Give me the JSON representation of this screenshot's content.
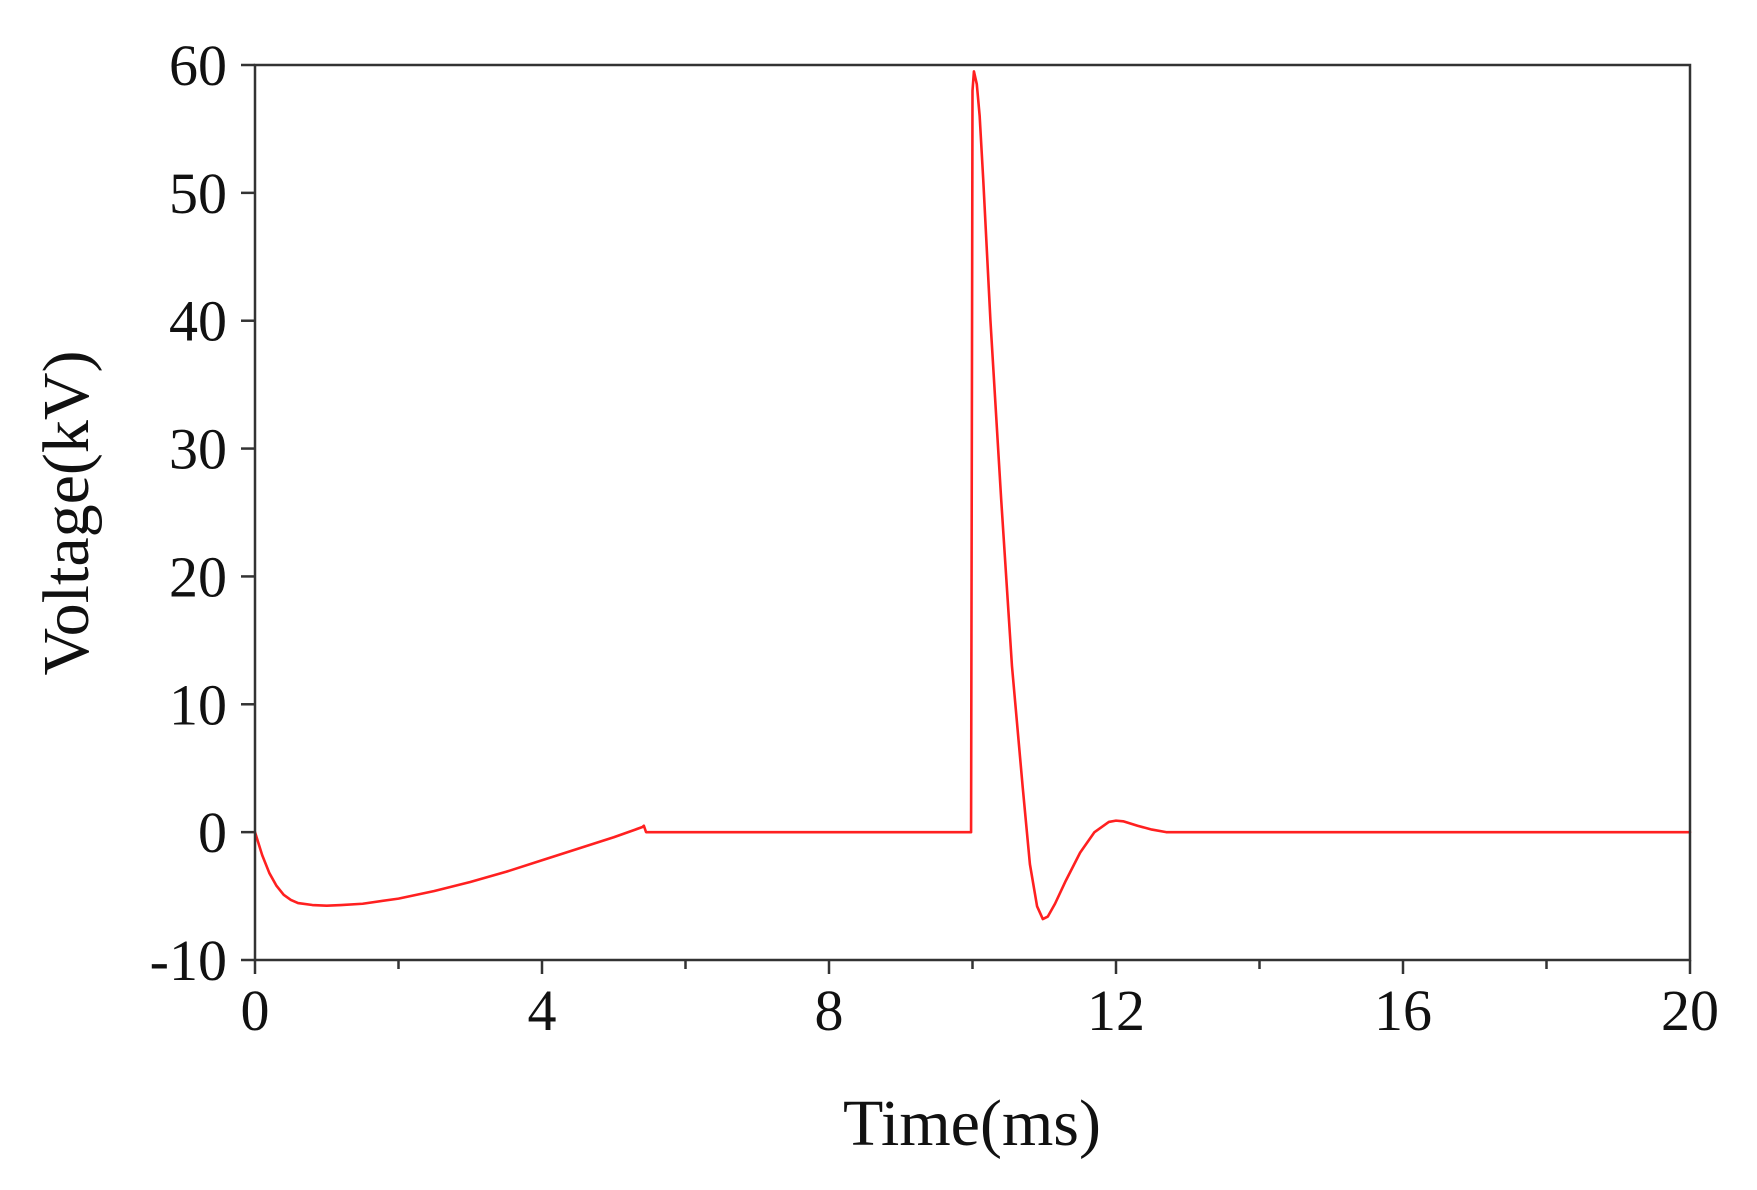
{
  "chart_data": {
    "type": "line",
    "title": "",
    "xlabel": "Time(ms)",
    "ylabel": "Voltage(kV)",
    "xlim": [
      0,
      20
    ],
    "ylim": [
      -10,
      60
    ],
    "x_ticks": [
      0,
      4,
      8,
      12,
      16,
      20
    ],
    "x_minor_ticks": [
      2,
      6,
      10,
      14,
      18
    ],
    "y_ticks": [
      -10,
      0,
      10,
      20,
      30,
      40,
      50,
      60
    ],
    "grid": false,
    "legend": "none",
    "series": [
      {
        "color": "#ff2020",
        "x": [
          0,
          0.1,
          0.2,
          0.3,
          0.4,
          0.5,
          0.6,
          0.8,
          1.0,
          1.2,
          1.5,
          2.0,
          2.5,
          3.0,
          3.5,
          4.0,
          4.5,
          5.0,
          5.3,
          5.4,
          5.42,
          5.45,
          5.5,
          6.0,
          7.0,
          8.0,
          9.0,
          9.98,
          10.0,
          10.02,
          10.06,
          10.1,
          10.15,
          10.25,
          10.4,
          10.55,
          10.7,
          10.8,
          10.9,
          10.98,
          11.05,
          11.15,
          11.3,
          11.5,
          11.7,
          11.9,
          12.0,
          12.1,
          12.3,
          12.5,
          12.7,
          13.0,
          14.0,
          16.0,
          18.0,
          20.0
        ],
        "y": [
          0,
          -1.8,
          -3.2,
          -4.2,
          -4.9,
          -5.3,
          -5.55,
          -5.7,
          -5.75,
          -5.7,
          -5.6,
          -5.2,
          -4.6,
          -3.9,
          -3.1,
          -2.2,
          -1.3,
          -0.4,
          0.2,
          0.4,
          0.5,
          0,
          0,
          0,
          0,
          0,
          0,
          0,
          58,
          59.5,
          58.5,
          56,
          51,
          40,
          26,
          13,
          3.5,
          -2.5,
          -5.8,
          -6.8,
          -6.6,
          -5.6,
          -3.8,
          -1.6,
          0,
          0.8,
          0.9,
          0.85,
          0.5,
          0.2,
          0,
          0,
          0,
          0,
          0,
          0
        ]
      }
    ]
  }
}
